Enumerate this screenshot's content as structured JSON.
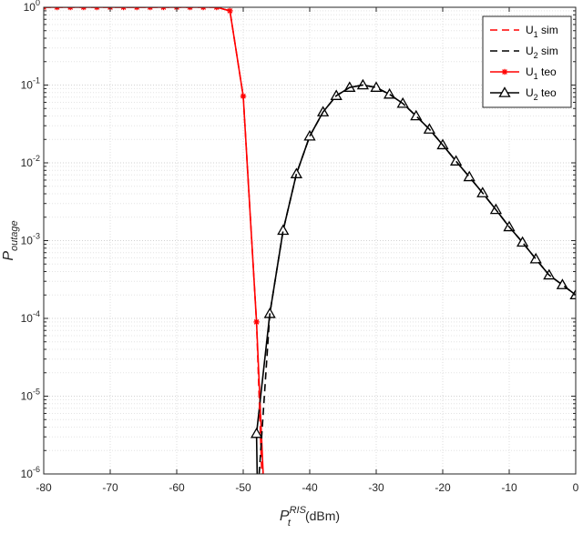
{
  "chart_data": {
    "type": "line",
    "xlabel": {
      "main": "P",
      "sub": "t",
      "sup": "RIS",
      "unit": "(dBm)"
    },
    "ylabel": {
      "main": "P",
      "sub": "outage"
    },
    "xlim": [
      -80,
      0
    ],
    "ylim": [
      1e-06,
      1
    ],
    "yscale": "log",
    "grid": true,
    "x_ticks": [
      -80,
      -70,
      -60,
      -50,
      -40,
      -30,
      -20,
      -10,
      0
    ],
    "y_ticks": [
      {
        "value": 1.0,
        "base": "10",
        "exp": "0"
      },
      {
        "value": 0.1,
        "base": "10",
        "exp": "-1"
      },
      {
        "value": 0.01,
        "base": "10",
        "exp": "-2"
      },
      {
        "value": 0.001,
        "base": "10",
        "exp": "-3"
      },
      {
        "value": 0.0001,
        "base": "10",
        "exp": "-4"
      },
      {
        "value": 1e-05,
        "base": "10",
        "exp": "-5"
      },
      {
        "value": 1e-06,
        "base": "10",
        "exp": "-6"
      }
    ],
    "legend_position": "top-right",
    "series": [
      {
        "name": {
          "main": "U",
          "sub": "1",
          "rest": " sim"
        },
        "color": "#ff0000",
        "style": "dashed",
        "marker": "none",
        "x": [
          -80,
          -78,
          -76,
          -74,
          -72,
          -70,
          -68,
          -66,
          -64,
          -62,
          -60,
          -58,
          -56,
          -54,
          -52,
          -50,
          -48,
          -47.2
        ],
        "y": [
          1,
          1,
          1,
          1,
          1,
          1,
          1,
          1,
          1,
          1,
          1,
          1,
          1,
          1,
          0.9,
          0.072,
          9e-05,
          1e-06
        ]
      },
      {
        "name": {
          "main": "U",
          "sub": "2",
          "rest": " sim"
        },
        "color": "#000000",
        "style": "dashed",
        "marker": "none",
        "x": [
          -47.6,
          -46,
          -44,
          -42,
          -40,
          -38,
          -36,
          -34,
          -32,
          -30,
          -28,
          -26,
          -24,
          -22,
          -20,
          -18,
          -16,
          -14,
          -12,
          -10,
          -8,
          -6,
          -4,
          -2,
          0
        ],
        "y": [
          1e-06,
          0.000115,
          0.00135,
          0.0072,
          0.022,
          0.045,
          0.073,
          0.093,
          0.1,
          0.093,
          0.076,
          0.058,
          0.04,
          0.027,
          0.017,
          0.0105,
          0.0066,
          0.0041,
          0.0025,
          0.0015,
          0.00095,
          0.00058,
          0.00036,
          0.00027,
          0.0002
        ]
      },
      {
        "name": {
          "main": "U",
          "sub": "1",
          "rest": " teo"
        },
        "color": "#ff0000",
        "style": "solid",
        "marker": "asterisk",
        "x": [
          -80,
          -78,
          -76,
          -74,
          -72,
          -70,
          -68,
          -66,
          -64,
          -62,
          -60,
          -58,
          -56,
          -54,
          -52,
          -50,
          -48,
          -47
        ],
        "y": [
          1,
          1,
          1,
          1,
          1,
          1,
          1,
          1,
          1,
          1,
          1,
          1,
          1,
          1,
          0.9,
          0.072,
          9e-05,
          1e-06
        ],
        "marker_count": 17
      },
      {
        "name": {
          "main": "U",
          "sub": "2",
          "rest": " teo"
        },
        "color": "#000000",
        "style": "solid",
        "marker": "triangle",
        "x": [
          -47.9,
          -48,
          -46,
          -44,
          -42,
          -40,
          -38,
          -36,
          -34,
          -32,
          -30,
          -28,
          -26,
          -24,
          -22,
          -20,
          -18,
          -16,
          -14,
          -12,
          -10,
          -8,
          -6,
          -4,
          -2,
          0
        ],
        "y": [
          1e-06,
          3.3e-06,
          0.000115,
          0.00135,
          0.0072,
          0.022,
          0.045,
          0.073,
          0.093,
          0.1,
          0.093,
          0.076,
          0.058,
          0.04,
          0.027,
          0.017,
          0.0105,
          0.0066,
          0.0041,
          0.0025,
          0.0015,
          0.00095,
          0.00058,
          0.00036,
          0.00027,
          0.0002
        ],
        "marker_start": 1
      }
    ]
  }
}
